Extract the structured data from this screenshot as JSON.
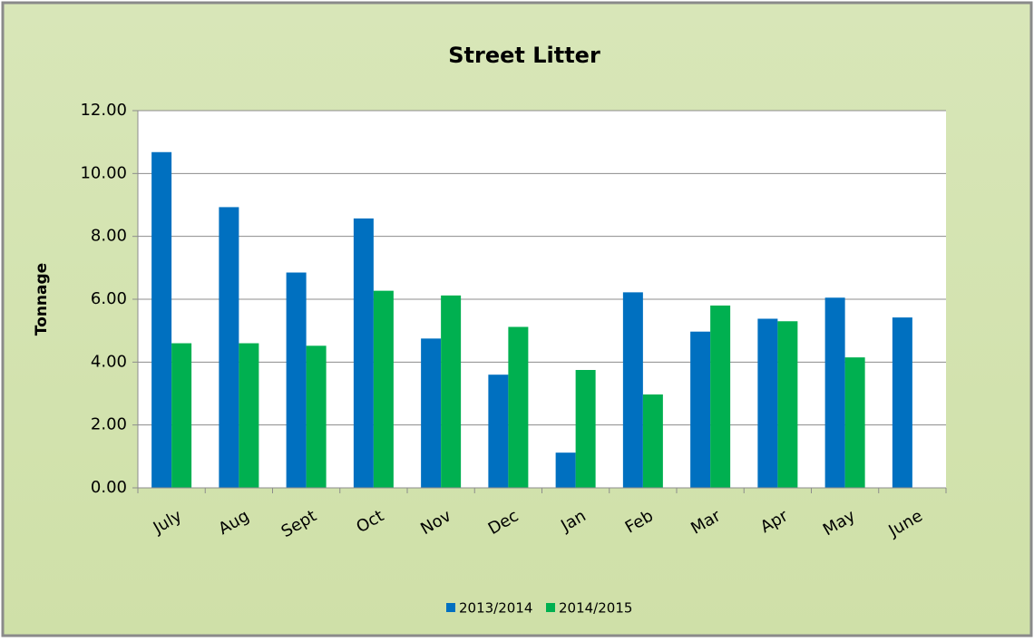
{
  "chart_data": {
    "type": "bar",
    "title": "Street Litter",
    "y_label": "Tonnage",
    "categories": [
      "July",
      "Aug",
      "Sept",
      "Oct",
      "Nov",
      "Dec",
      "Jan",
      "Feb",
      "Mar",
      "Apr",
      "May",
      "June"
    ],
    "series": [
      {
        "name": "2013/2014",
        "color": "#0070c0",
        "values": [
          10.68,
          8.93,
          6.85,
          8.57,
          4.75,
          3.6,
          1.12,
          6.22,
          4.97,
          5.38,
          6.05,
          5.42
        ]
      },
      {
        "name": "2014/2015",
        "color": "#00b050",
        "values": [
          4.6,
          4.6,
          4.52,
          6.27,
          6.12,
          5.12,
          3.75,
          2.97,
          5.8,
          5.3,
          4.15,
          null
        ]
      }
    ],
    "ylim": [
      0,
      12
    ],
    "yticks": [
      {
        "value": 0,
        "label": "0.00"
      },
      {
        "value": 2,
        "label": "2.00"
      },
      {
        "value": 4,
        "label": "4.00"
      },
      {
        "value": 6,
        "label": "6.00"
      },
      {
        "value": 8,
        "label": "8.00"
      },
      {
        "value": 10,
        "label": "10.00"
      },
      {
        "value": 12,
        "label": "12.00"
      }
    ],
    "grid": true,
    "legend": "bottom"
  }
}
